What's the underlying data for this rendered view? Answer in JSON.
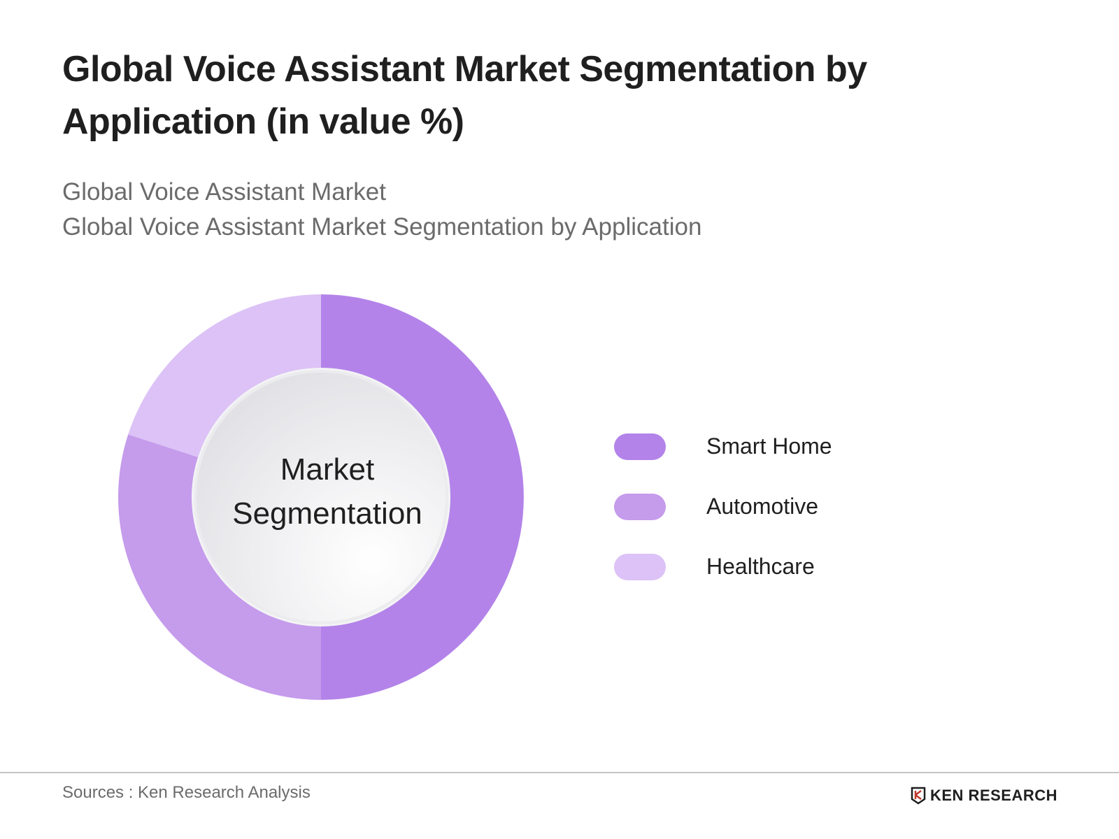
{
  "title": "Global Voice Assistant Market Segmentation by Application (in value %)",
  "subtitle": {
    "line1": "Global Voice Assistant Market",
    "line2": "Global Voice Assistant Market Segmentation by Application"
  },
  "center_label": {
    "line1": "Market",
    "line2": "Segmentation"
  },
  "legend": [
    {
      "label": "Smart Home",
      "color": "#b383e9"
    },
    {
      "label": "Automotive",
      "color": "#c59bec"
    },
    {
      "label": "Healthcare",
      "color": "#dcc2f6"
    }
  ],
  "footer": {
    "source": "Sources : Ken Research Analysis",
    "logo_text": "KEN RESEARCH"
  },
  "chart_data": {
    "type": "pie",
    "subtype": "donut",
    "title": "Global Voice Assistant Market Segmentation by Application (in value %)",
    "center_text": "Market Segmentation",
    "categories": [
      "Smart Home",
      "Automotive",
      "Healthcare"
    ],
    "values": [
      50,
      30,
      20
    ],
    "colors": [
      "#b383e9",
      "#c59bec",
      "#dcc2f6"
    ],
    "unit": "%",
    "legend_position": "right",
    "data_labels_shown": false
  }
}
